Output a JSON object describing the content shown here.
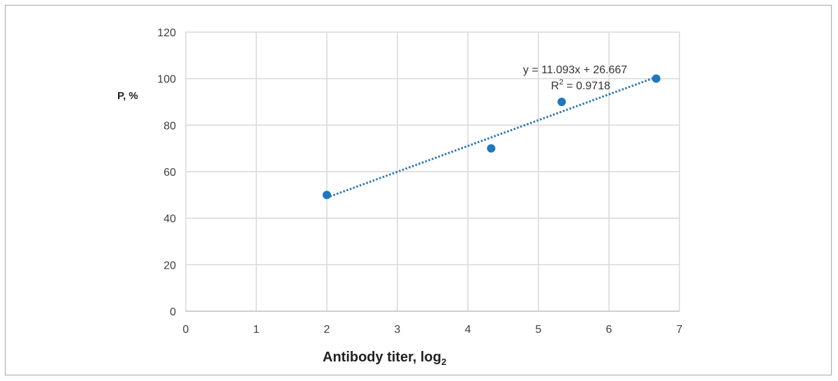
{
  "chart_data": {
    "type": "scatter",
    "xlabel": "Antibody titer, log",
    "xlabel_subscript": "2",
    "ylabel": "P, %",
    "xlim": [
      0,
      7
    ],
    "ylim": [
      0,
      120
    ],
    "x_ticks": [
      "0",
      "1",
      "2",
      "3",
      "4",
      "5",
      "6",
      "7"
    ],
    "y_ticks": [
      "0",
      "20",
      "40",
      "60",
      "80",
      "100",
      "120"
    ],
    "grid": true,
    "legend": "none",
    "series": [
      {
        "x": [
          2,
          4.33,
          5.33,
          6.67
        ],
        "y": [
          50,
          70,
          90,
          100
        ],
        "color": "#1f77c0"
      }
    ],
    "trendline": {
      "type": "linear",
      "style": "dotted",
      "color": "#2e75b6",
      "x_range": [
        2,
        6.67
      ],
      "slope": 11.093,
      "intercept": 26.667,
      "equation_label": "y = 11.093x + 26.667",
      "r2_prefix": "R",
      "r2_sup": "2",
      "r2_value": " = 0.9718"
    },
    "colors": {
      "grid": "#d9d9d9",
      "axis": "#bfbfbf",
      "point": "#1f77c0"
    }
  }
}
